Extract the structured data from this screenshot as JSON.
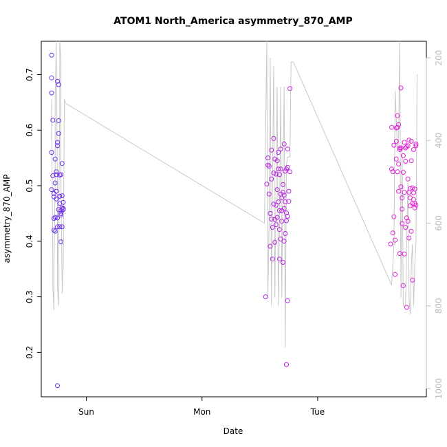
{
  "chart_data": {
    "type": "scatter",
    "title": "ATOM1 North_America asymmetry_870_AMP",
    "xlabel": "Date",
    "ylabel": "asymmetry_870_AMP",
    "x_tick_labels": [
      "Sun",
      "Mon",
      "Tue"
    ],
    "x_tick_values": [
      1,
      2,
      3
    ],
    "xlim": [
      0.61,
      3.94
    ],
    "ylim": [
      0.12,
      0.76
    ],
    "y_ticks": [
      0.2,
      0.3,
      0.4,
      0.5,
      0.6,
      0.7
    ],
    "y2lim": [
      1020,
      160
    ],
    "y2_ticks": [
      200,
      400,
      600,
      800,
      1000
    ],
    "grid": false,
    "colors": {
      "points_start": "#6a2df2",
      "points_end": "#e61ed6",
      "line": "#c8c8c8",
      "right_axis": "#bdbdbd"
    },
    "series": [
      {
        "type": "scatter",
        "clusters": [
          {
            "x": [
              0.7,
              0.7,
              0.7,
              0.71,
              0.7,
              0.71,
              0.7,
              0.72,
              0.72,
              0.73,
              0.72,
              0.72,
              0.73,
              0.74,
              0.73,
              0.74,
              0.73,
              0.74,
              0.75,
              0.75,
              0.74,
              0.75,
              0.75,
              0.76,
              0.75,
              0.76,
              0.76,
              0.77,
              0.77,
              0.77,
              0.76,
              0.78,
              0.78,
              0.78,
              0.77,
              0.78,
              0.79,
              0.79,
              0.79,
              0.78,
              0.79,
              0.8,
              0.8,
              0.8,
              0.75
            ],
            "y": [
              0.735,
              0.694,
              0.667,
              0.618,
              0.56,
              0.518,
              0.493,
              0.486,
              0.42,
              0.418,
              0.441,
              0.48,
              0.443,
              0.476,
              0.505,
              0.525,
              0.548,
              0.52,
              0.578,
              0.572,
              0.49,
              0.442,
              0.426,
              0.617,
              0.688,
              0.682,
              0.594,
              0.519,
              0.468,
              0.481,
              0.457,
              0.52,
              0.447,
              0.45,
              0.426,
              0.399,
              0.54,
              0.482,
              0.46,
              0.455,
              0.426,
              0.47,
              0.457,
              0.459,
              0.14
            ]
          },
          {
            "x": [
              2.55,
              2.56,
              2.57,
              2.57,
              2.58,
              2.58,
              2.59,
              2.59,
              2.6,
              2.6,
              2.6,
              2.61,
              2.61,
              2.62,
              2.62,
              2.62,
              2.63,
              2.63,
              2.63,
              2.64,
              2.64,
              2.64,
              2.65,
              2.65,
              2.65,
              2.66,
              2.66,
              2.66,
              2.67,
              2.67,
              2.67,
              2.67,
              2.68,
              2.68,
              2.68,
              2.68,
              2.69,
              2.69,
              2.69,
              2.7,
              2.7,
              2.7,
              2.71,
              2.71,
              2.71,
              2.71,
              2.72,
              2.72,
              2.72,
              2.73,
              2.73,
              2.73,
              2.74,
              2.74,
              2.74,
              2.75,
              2.75,
              2.76,
              2.76,
              2.73,
              2.74
            ],
            "y": [
              0.3,
              0.503,
              0.537,
              0.55,
              0.485,
              0.535,
              0.45,
              0.391,
              0.564,
              0.44,
              0.512,
              0.368,
              0.425,
              0.585,
              0.467,
              0.523,
              0.398,
              0.439,
              0.548,
              0.43,
              0.521,
              0.465,
              0.493,
              0.545,
              0.443,
              0.471,
              0.56,
              0.53,
              0.52,
              0.455,
              0.368,
              0.421,
              0.404,
              0.53,
              0.485,
              0.566,
              0.478,
              0.436,
              0.455,
              0.362,
              0.502,
              0.488,
              0.575,
              0.459,
              0.483,
              0.4,
              0.526,
              0.471,
              0.414,
              0.53,
              0.437,
              0.451,
              0.533,
              0.566,
              0.445,
              0.472,
              0.49,
              0.525,
              0.675,
              0.178,
              0.293
            ]
          },
          {
            "x": [
              3.63,
              3.64,
              3.64,
              3.65,
              3.65,
              3.66,
              3.66,
              3.67,
              3.67,
              3.68,
              3.68,
              3.68,
              3.69,
              3.69,
              3.69,
              3.7,
              3.7,
              3.7,
              3.71,
              3.71,
              3.71,
              3.72,
              3.72,
              3.72,
              3.73,
              3.73,
              3.73,
              3.74,
              3.74,
              3.74,
              3.75,
              3.75,
              3.75,
              3.76,
              3.76,
              3.76,
              3.77,
              3.77,
              3.77,
              3.78,
              3.78,
              3.78,
              3.79,
              3.79,
              3.79,
              3.8,
              3.8,
              3.8,
              3.81,
              3.81,
              3.81,
              3.82,
              3.82,
              3.82,
              3.83,
              3.83,
              3.83,
              3.84,
              3.84,
              3.84,
              3.85,
              3.85,
              3.85
            ],
            "y": [
              0.395,
              0.53,
              0.605,
              0.415,
              0.525,
              0.444,
              0.573,
              0.34,
              0.402,
              0.58,
              0.604,
              0.548,
              0.605,
              0.525,
              0.626,
              0.539,
              0.49,
              0.61,
              0.568,
              0.378,
              0.565,
              0.676,
              0.498,
              0.568,
              0.458,
              0.432,
              0.478,
              0.524,
              0.32,
              0.554,
              0.377,
              0.578,
              0.488,
              0.544,
              0.425,
              0.568,
              0.57,
              0.442,
              0.281,
              0.572,
              0.512,
              0.436,
              0.406,
              0.488,
              0.582,
              0.495,
              0.464,
              0.478,
              0.418,
              0.545,
              0.58,
              0.496,
              0.468,
              0.33,
              0.475,
              0.487,
              0.565,
              0.46,
              0.468,
              0.494,
              0.572,
              0.575,
              0.465
            ]
          }
        ]
      },
      {
        "type": "line",
        "axis": "right",
        "x": [
          0.7,
          0.7,
          0.71,
          0.71,
          0.72,
          0.72,
          0.73,
          0.73,
          0.74,
          0.74,
          0.75,
          0.75,
          0.76,
          0.76,
          0.77,
          0.77,
          0.78,
          0.78,
          0.79,
          0.79,
          0.8,
          0.81,
          0.82,
          2.54,
          2.56,
          2.57,
          2.58,
          2.59,
          2.6,
          2.61,
          2.62,
          2.63,
          2.64,
          2.65,
          2.66,
          2.67,
          2.68,
          2.69,
          2.7,
          2.71,
          2.72,
          2.73,
          2.74,
          2.75,
          2.76,
          2.77,
          2.79,
          3.64,
          3.66,
          3.67,
          3.69,
          3.7,
          3.71,
          3.72,
          3.73,
          3.74,
          3.75,
          3.76,
          3.78,
          3.79,
          3.8,
          3.81,
          3.82,
          3.83,
          3.84,
          3.85,
          3.86
        ],
        "y": [
          400,
          300,
          700,
          750,
          810,
          700,
          500,
          300,
          160,
          200,
          500,
          750,
          800,
          700,
          300,
          160,
          200,
          500,
          750,
          770,
          700,
          300,
          310,
          600,
          160,
          780,
          600,
          200,
          800,
          500,
          220,
          780,
          500,
          270,
          800,
          600,
          270,
          780,
          480,
          270,
          900,
          460,
          440,
          440,
          440,
          210,
          210,
          750,
          650,
          280,
          420,
          400,
          160,
          780,
          400,
          800,
          800,
          800,
          500,
          780,
          820,
          700,
          650,
          800,
          700,
          650,
          240
        ]
      }
    ]
  }
}
